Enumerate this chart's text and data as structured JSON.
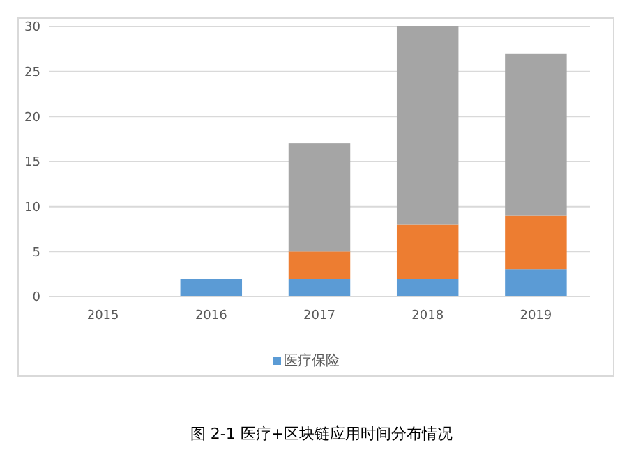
{
  "chart_data": {
    "type": "bar",
    "title": "图 2-1  医疗+区块链应用时间分布情况",
    "stacked": true,
    "categories": [
      "2015",
      "2016",
      "2017",
      "2018",
      "2019"
    ],
    "series": [
      {
        "name": "医疗保险",
        "color": "#5b9bd5",
        "values": [
          0,
          2,
          2,
          2,
          3
        ]
      },
      {
        "color": "#ed7d31",
        "values": [
          0,
          0,
          3,
          6,
          6
        ]
      },
      {
        "color": "#a5a5a5",
        "values": [
          0,
          0,
          12,
          22,
          18
        ]
      }
    ],
    "ylim": [
      0,
      30
    ],
    "yticks": [
      0,
      5,
      10,
      15,
      20,
      25,
      30
    ],
    "grid": "y",
    "legend": "bottom"
  }
}
